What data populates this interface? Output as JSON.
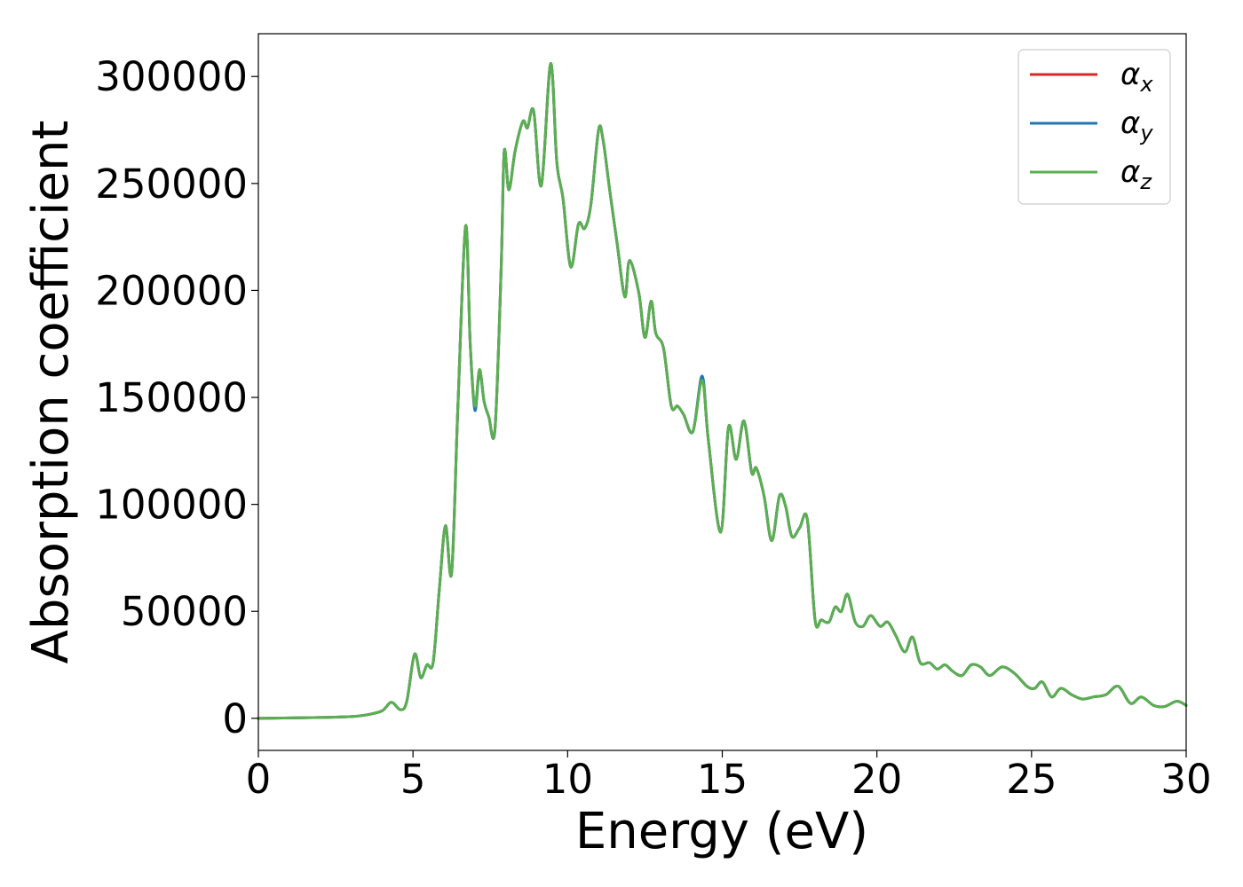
{
  "chart_data": {
    "type": "line",
    "title": "",
    "xlabel": "Energy (eV)",
    "ylabel": "Absorption coefficient",
    "xlim": [
      0,
      30
    ],
    "ylim": [
      -15000,
      320000
    ],
    "xticks": [
      0,
      5,
      10,
      15,
      20,
      25,
      30
    ],
    "yticks": [
      0,
      50000,
      100000,
      150000,
      200000,
      250000,
      300000
    ],
    "grid": false,
    "legend_position": "top-right",
    "series": [
      {
        "name": "αx",
        "symbol": "α",
        "subscript": "x",
        "color": "#d62728",
        "x": [
          0,
          2,
          3,
          3.5,
          4.0,
          4.3,
          4.6,
          4.8,
          5.05,
          5.25,
          5.45,
          5.65,
          5.85,
          6.05,
          6.25,
          6.45,
          6.7,
          6.85,
          7.0,
          7.15,
          7.3,
          7.45,
          7.65,
          7.85,
          7.95,
          8.1,
          8.3,
          8.55,
          8.7,
          8.9,
          9.15,
          9.45,
          9.65,
          9.85,
          10.1,
          10.35,
          10.55,
          10.75,
          11.0,
          11.15,
          11.35,
          11.6,
          11.85,
          12.0,
          12.3,
          12.5,
          12.7,
          12.85,
          13.1,
          13.35,
          13.55,
          13.75,
          14.05,
          14.35,
          14.55,
          14.95,
          15.2,
          15.45,
          15.7,
          15.95,
          16.1,
          16.35,
          16.6,
          16.85,
          17.05,
          17.25,
          17.5,
          17.75,
          18.0,
          18.2,
          18.45,
          18.65,
          18.85,
          19.05,
          19.3,
          19.55,
          19.8,
          20.1,
          20.35,
          20.6,
          20.9,
          21.15,
          21.4,
          21.7,
          21.95,
          22.2,
          22.45,
          22.75,
          23.05,
          23.35,
          23.65,
          24.05,
          24.45,
          24.85,
          25.1,
          25.35,
          25.65,
          25.95,
          26.3,
          26.65,
          27.0,
          27.4,
          27.8,
          28.2,
          28.55,
          28.95,
          29.3,
          29.7,
          30.0
        ],
        "y": [
          0,
          400,
          800,
          1600,
          3500,
          7500,
          4000,
          8000,
          30000,
          19000,
          25000,
          26000,
          60000,
          90000,
          68000,
          145000,
          230000,
          175000,
          145000,
          163000,
          148000,
          141000,
          135000,
          210000,
          265000,
          247000,
          265000,
          279000,
          276000,
          284000,
          249000,
          306000,
          260000,
          243000,
          211000,
          231000,
          229000,
          240000,
          275000,
          270000,
          248000,
          222000,
          197000,
          214000,
          199000,
          178000,
          195000,
          180000,
          173000,
          146000,
          146000,
          142000,
          134000,
          159000,
          130000,
          87000,
          136000,
          121000,
          139000,
          115000,
          117000,
          104000,
          83000,
          104000,
          99000,
          85000,
          89000,
          93000,
          46000,
          46000,
          45000,
          52000,
          50000,
          58000,
          45000,
          43000,
          48000,
          43000,
          45000,
          39000,
          31000,
          38000,
          26000,
          26000,
          23000,
          25000,
          22000,
          20000,
          25000,
          24000,
          20000,
          24000,
          21000,
          15000,
          14000,
          17000,
          10000,
          14000,
          11000,
          9000,
          10000,
          11000,
          15000,
          7000,
          10000,
          6000,
          5500,
          8000,
          6000
        ]
      },
      {
        "name": "αy",
        "symbol": "α",
        "subscript": "y",
        "color": "#1f77b4",
        "x": [
          0,
          2,
          3,
          3.5,
          4.0,
          4.3,
          4.6,
          4.8,
          5.05,
          5.25,
          5.45,
          5.65,
          5.85,
          6.05,
          6.25,
          6.45,
          6.7,
          6.85,
          7.0,
          7.15,
          7.3,
          7.45,
          7.65,
          7.85,
          7.95,
          8.1,
          8.3,
          8.55,
          8.7,
          8.9,
          9.15,
          9.45,
          9.65,
          9.85,
          10.1,
          10.35,
          10.55,
          10.75,
          11.0,
          11.15,
          11.35,
          11.6,
          11.85,
          12.0,
          12.3,
          12.5,
          12.7,
          12.85,
          13.1,
          13.35,
          13.55,
          13.75,
          14.05,
          14.35,
          14.55,
          14.95,
          15.2,
          15.45,
          15.7,
          15.95,
          16.1,
          16.35,
          16.6,
          16.85,
          17.05,
          17.25,
          17.5,
          17.75,
          18.0,
          18.2,
          18.45,
          18.65,
          18.85,
          19.05,
          19.3,
          19.55,
          19.8,
          20.1,
          20.35,
          20.6,
          20.9,
          21.15,
          21.4,
          21.7,
          21.95,
          22.2,
          22.45,
          22.75,
          23.05,
          23.35,
          23.65,
          24.05,
          24.45,
          24.85,
          25.1,
          25.35,
          25.65,
          25.95,
          26.3,
          26.65,
          27.0,
          27.4,
          27.8,
          28.2,
          28.55,
          28.95,
          29.3,
          29.7,
          30.0
        ],
        "y": [
          0,
          400,
          800,
          1600,
          3500,
          7500,
          4000,
          8000,
          30000,
          19000,
          25000,
          26000,
          60000,
          90000,
          68000,
          145000,
          230000,
          175000,
          144000,
          162000,
          148000,
          141000,
          135000,
          210000,
          265000,
          247000,
          265000,
          279000,
          276000,
          284000,
          249000,
          306000,
          260000,
          243000,
          211000,
          231000,
          229000,
          240000,
          275000,
          270000,
          248000,
          222000,
          197000,
          214000,
          199000,
          178000,
          195000,
          180000,
          173000,
          146000,
          146000,
          142000,
          134000,
          160000,
          130000,
          87000,
          136000,
          121000,
          139000,
          115000,
          117000,
          104000,
          83000,
          104000,
          99000,
          85000,
          89000,
          93000,
          46000,
          46000,
          45000,
          52000,
          50000,
          58000,
          45000,
          43000,
          48000,
          43000,
          45000,
          39000,
          31000,
          38000,
          26000,
          26000,
          23000,
          25000,
          22000,
          20000,
          25000,
          24000,
          20000,
          24000,
          21000,
          15000,
          14000,
          17000,
          10000,
          14000,
          11000,
          9000,
          10000,
          11000,
          15000,
          7000,
          10000,
          6000,
          5500,
          8000,
          6000
        ]
      },
      {
        "name": "αz",
        "symbol": "α",
        "subscript": "z",
        "color": "#5aaf50",
        "x": [
          0,
          2,
          3,
          3.5,
          4.0,
          4.3,
          4.6,
          4.8,
          5.05,
          5.25,
          5.45,
          5.65,
          5.85,
          6.05,
          6.25,
          6.45,
          6.7,
          6.85,
          7.0,
          7.15,
          7.3,
          7.45,
          7.65,
          7.85,
          7.95,
          8.1,
          8.3,
          8.55,
          8.7,
          8.9,
          9.15,
          9.45,
          9.65,
          9.85,
          10.1,
          10.35,
          10.55,
          10.75,
          11.0,
          11.15,
          11.35,
          11.6,
          11.85,
          12.0,
          12.3,
          12.5,
          12.7,
          12.85,
          13.1,
          13.35,
          13.55,
          13.75,
          14.05,
          14.35,
          14.55,
          14.95,
          15.2,
          15.45,
          15.7,
          15.95,
          16.1,
          16.35,
          16.6,
          16.85,
          17.05,
          17.25,
          17.5,
          17.75,
          18.0,
          18.2,
          18.45,
          18.65,
          18.85,
          19.05,
          19.3,
          19.55,
          19.8,
          20.1,
          20.35,
          20.6,
          20.9,
          21.15,
          21.4,
          21.7,
          21.95,
          22.2,
          22.45,
          22.75,
          23.05,
          23.35,
          23.65,
          24.05,
          24.45,
          24.85,
          25.1,
          25.35,
          25.65,
          25.95,
          26.3,
          26.65,
          27.0,
          27.4,
          27.8,
          28.2,
          28.55,
          28.95,
          29.3,
          29.7,
          30.0
        ],
        "y": [
          0,
          400,
          800,
          1600,
          3500,
          7500,
          4000,
          8000,
          30000,
          19000,
          25000,
          26000,
          60000,
          90000,
          68000,
          145000,
          230000,
          175000,
          146000,
          163000,
          148000,
          141000,
          135000,
          210000,
          265000,
          247000,
          265000,
          279000,
          276000,
          284000,
          249000,
          306000,
          260000,
          243000,
          211000,
          231000,
          229000,
          240000,
          275000,
          270000,
          248000,
          222000,
          197000,
          214000,
          199000,
          178000,
          195000,
          180000,
          173000,
          146000,
          146000,
          142000,
          134000,
          158000,
          130000,
          87000,
          136000,
          121000,
          139000,
          115000,
          117000,
          104000,
          83000,
          104000,
          99000,
          85000,
          89000,
          93000,
          46000,
          46000,
          45000,
          52000,
          50000,
          58000,
          45000,
          43000,
          48000,
          43000,
          45000,
          39000,
          31000,
          38000,
          26000,
          26000,
          23000,
          25000,
          22000,
          20000,
          25000,
          24000,
          20000,
          24000,
          21000,
          15000,
          14000,
          17000,
          10000,
          14000,
          11000,
          9000,
          10000,
          11000,
          15000,
          7000,
          10000,
          6000,
          5500,
          8000,
          6000
        ]
      }
    ]
  }
}
